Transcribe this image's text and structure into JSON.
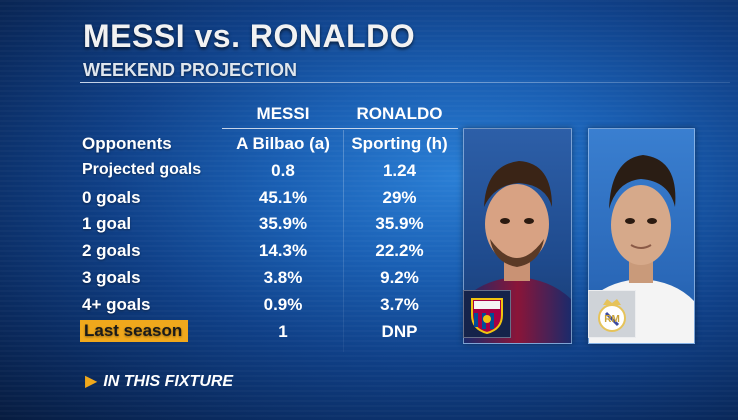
{
  "header": {
    "title": "MESSI vs. RONALDO",
    "subtitle": "WEEKEND PROJECTION"
  },
  "columns": {
    "messi": "MESSI",
    "ronaldo": "RONALDO"
  },
  "rows": [
    {
      "label": "Opponents",
      "messi": "A Bilbao (a)",
      "ronaldo": "Sporting (h)"
    },
    {
      "label": "Projected goals",
      "messi": "0.8",
      "ronaldo": "1.24"
    },
    {
      "label": "0 goals",
      "messi": "45.1%",
      "ronaldo": "29%"
    },
    {
      "label": "1 goal",
      "messi": "35.9%",
      "ronaldo": "35.9%"
    },
    {
      "label": "2 goals",
      "messi": "14.3%",
      "ronaldo": "22.2%"
    },
    {
      "label": "3 goals",
      "messi": "3.8%",
      "ronaldo": "9.2%"
    },
    {
      "label": "4+ goals",
      "messi": "0.9%",
      "ronaldo": "3.7%"
    },
    {
      "label": "Last season",
      "messi": "1",
      "ronaldo": "DNP"
    }
  ],
  "footer": {
    "note": "IN THIS FIXTURE"
  },
  "colors": {
    "highlight": "#f0a81c",
    "background": "#1a5fb3"
  },
  "icons": {
    "footer_marker": "triangle-right-icon",
    "messi_badge": "fc-barcelona-crest-icon",
    "ronaldo_badge": "real-madrid-crest-icon"
  }
}
